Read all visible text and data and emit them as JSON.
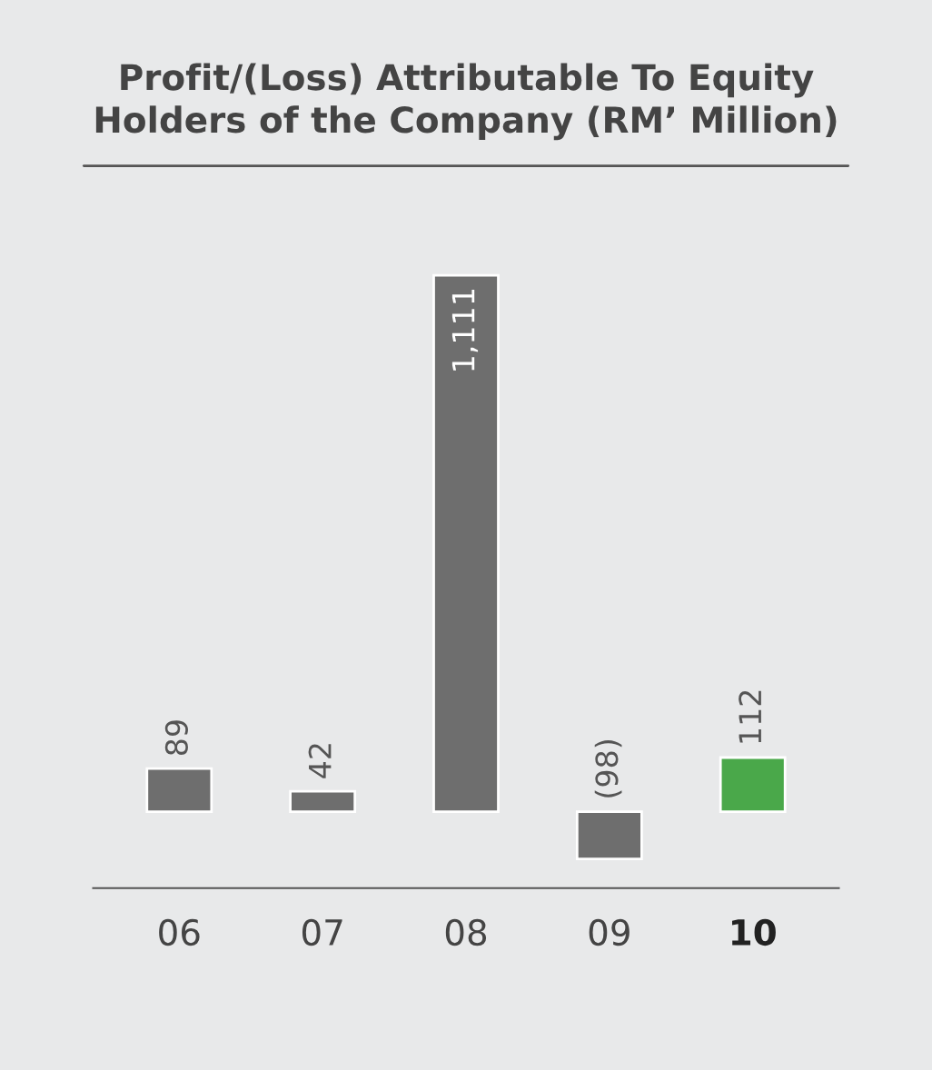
{
  "chart_data": {
    "type": "bar",
    "title": "Profit/(Loss) Attributable To Equity\nHolders of the Company (RM’ Million)",
    "categories": [
      "06",
      "07",
      "08",
      "09",
      "10"
    ],
    "values": [
      89,
      42,
      1111,
      -98,
      112
    ],
    "value_labels": [
      "89",
      "42",
      "1,111",
      "(98)",
      "112"
    ],
    "colors": [
      "#6e6e6e",
      "#6e6e6e",
      "#6e6e6e",
      "#6e6e6e",
      "#4aa84a"
    ],
    "grid": false,
    "legend": false
  }
}
